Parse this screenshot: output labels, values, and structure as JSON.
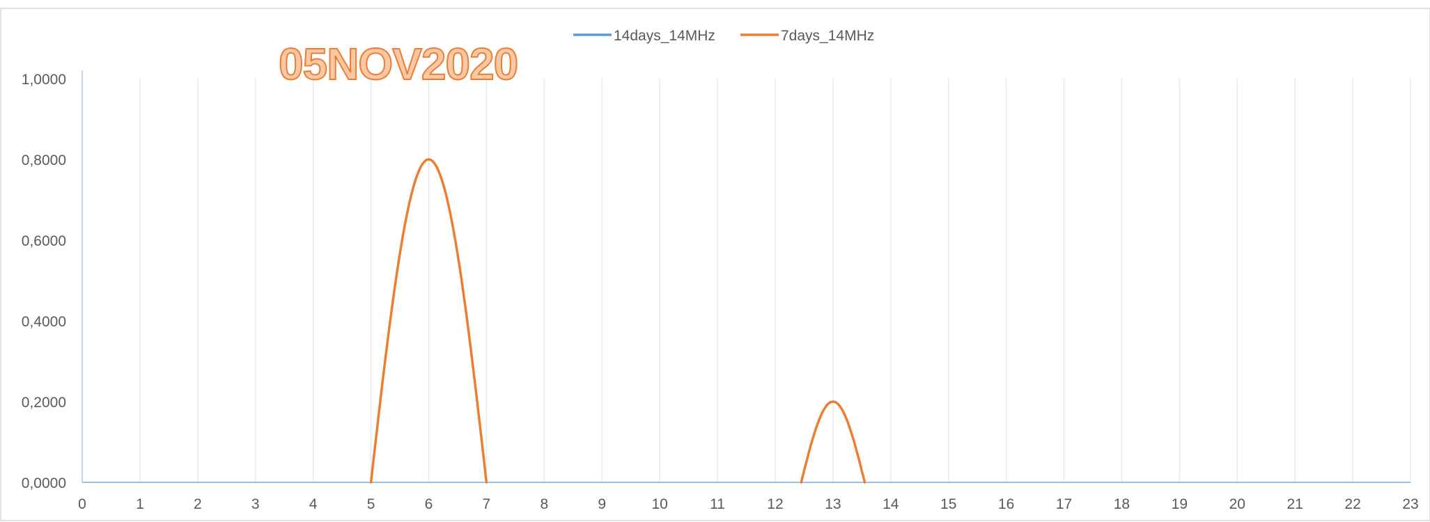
{
  "chart_data": {
    "type": "line",
    "title": "05NOV2020",
    "xlabel": "",
    "ylabel": "",
    "x": [
      0,
      1,
      2,
      3,
      4,
      5,
      6,
      7,
      8,
      9,
      10,
      11,
      12,
      13,
      14,
      15,
      16,
      17,
      18,
      19,
      20,
      21,
      22,
      23
    ],
    "xlim": [
      0,
      23
    ],
    "ylim": [
      0,
      1
    ],
    "yticks": [
      "0,0000",
      "0,2000",
      "0,4000",
      "0,6000",
      "0,8000",
      "1,0000"
    ],
    "xticks": [
      "0",
      "1",
      "2",
      "3",
      "4",
      "5",
      "6",
      "7",
      "8",
      "9",
      "10",
      "11",
      "12",
      "13",
      "14",
      "15",
      "16",
      "17",
      "18",
      "19",
      "20",
      "21",
      "22",
      "23"
    ],
    "grid": "vertical",
    "legend_position": "top",
    "series": [
      {
        "name": "14days_14MHz",
        "color": "#5B9BD5",
        "values": [
          0,
          0,
          0,
          0,
          0,
          0,
          0,
          0,
          0,
          0,
          0,
          0,
          0,
          0,
          0,
          0,
          0,
          0,
          0,
          0,
          0,
          0,
          0,
          0
        ]
      },
      {
        "name": "7days_14MHz",
        "color": "#ED7D31",
        "values": [
          0,
          0,
          0,
          0,
          0,
          0,
          0.8,
          0,
          0,
          0,
          0,
          0,
          0,
          0.2,
          0,
          0,
          0,
          0,
          0,
          0,
          0,
          0,
          0,
          0
        ]
      }
    ]
  }
}
